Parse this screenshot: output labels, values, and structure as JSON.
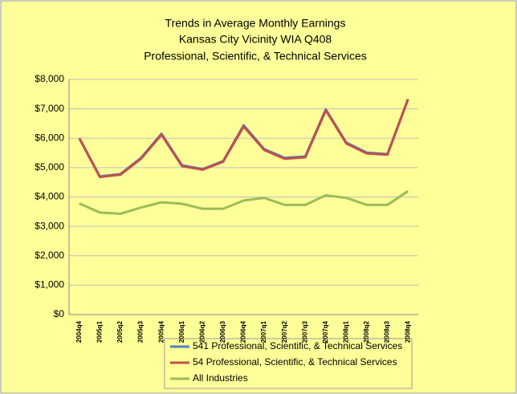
{
  "chart_data": {
    "type": "line",
    "title": [
      "Trends in Average Monthly Earnings",
      "Kansas City Vicinity WIA Q408",
      "Professional, Scientific, & Technical Services"
    ],
    "categories": [
      "2004q4",
      "2005q1",
      "2005q2",
      "2005q3",
      "2005q4",
      "2006q1",
      "2006q2",
      "2006q3",
      "2006q4",
      "2007q1",
      "2007q2",
      "2007q3",
      "2007q4",
      "2008q1",
      "2008q2",
      "2008q3",
      "2008q4"
    ],
    "series": [
      {
        "name": "541 Professional, Scientific, & Technical Services",
        "color": "#4f81bd",
        "values": [
          6000,
          4700,
          4780,
          5330,
          6150,
          5080,
          4950,
          5220,
          6440,
          5630,
          5330,
          5380,
          6980,
          5850,
          5510,
          5460,
          7330
        ]
      },
      {
        "name": "54 Professional, Scientific, & Technical Services",
        "color": "#c0504d",
        "values": [
          6000,
          4680,
          4760,
          5300,
          6120,
          5050,
          4930,
          5200,
          6400,
          5600,
          5300,
          5350,
          6950,
          5820,
          5480,
          5440,
          7320
        ]
      },
      {
        "name": "All Industries",
        "color": "#9bbb59",
        "values": [
          3780,
          3470,
          3430,
          3640,
          3820,
          3770,
          3600,
          3600,
          3880,
          3970,
          3730,
          3730,
          4060,
          3970,
          3730,
          3730,
          4200
        ]
      }
    ],
    "ylim": [
      0,
      8000
    ],
    "yticks": [
      {
        "value": 0,
        "label": "$0"
      },
      {
        "value": 1000,
        "label": "$1,000"
      },
      {
        "value": 2000,
        "label": "$2,000"
      },
      {
        "value": 3000,
        "label": "$3,000"
      },
      {
        "value": 4000,
        "label": "$4,000"
      },
      {
        "value": 5000,
        "label": "$5,000"
      },
      {
        "value": 6000,
        "label": "$6,000"
      },
      {
        "value": 7000,
        "label": "$7,000"
      },
      {
        "value": 8000,
        "label": "$8,000"
      }
    ],
    "grid": true,
    "legend": "bottom"
  }
}
